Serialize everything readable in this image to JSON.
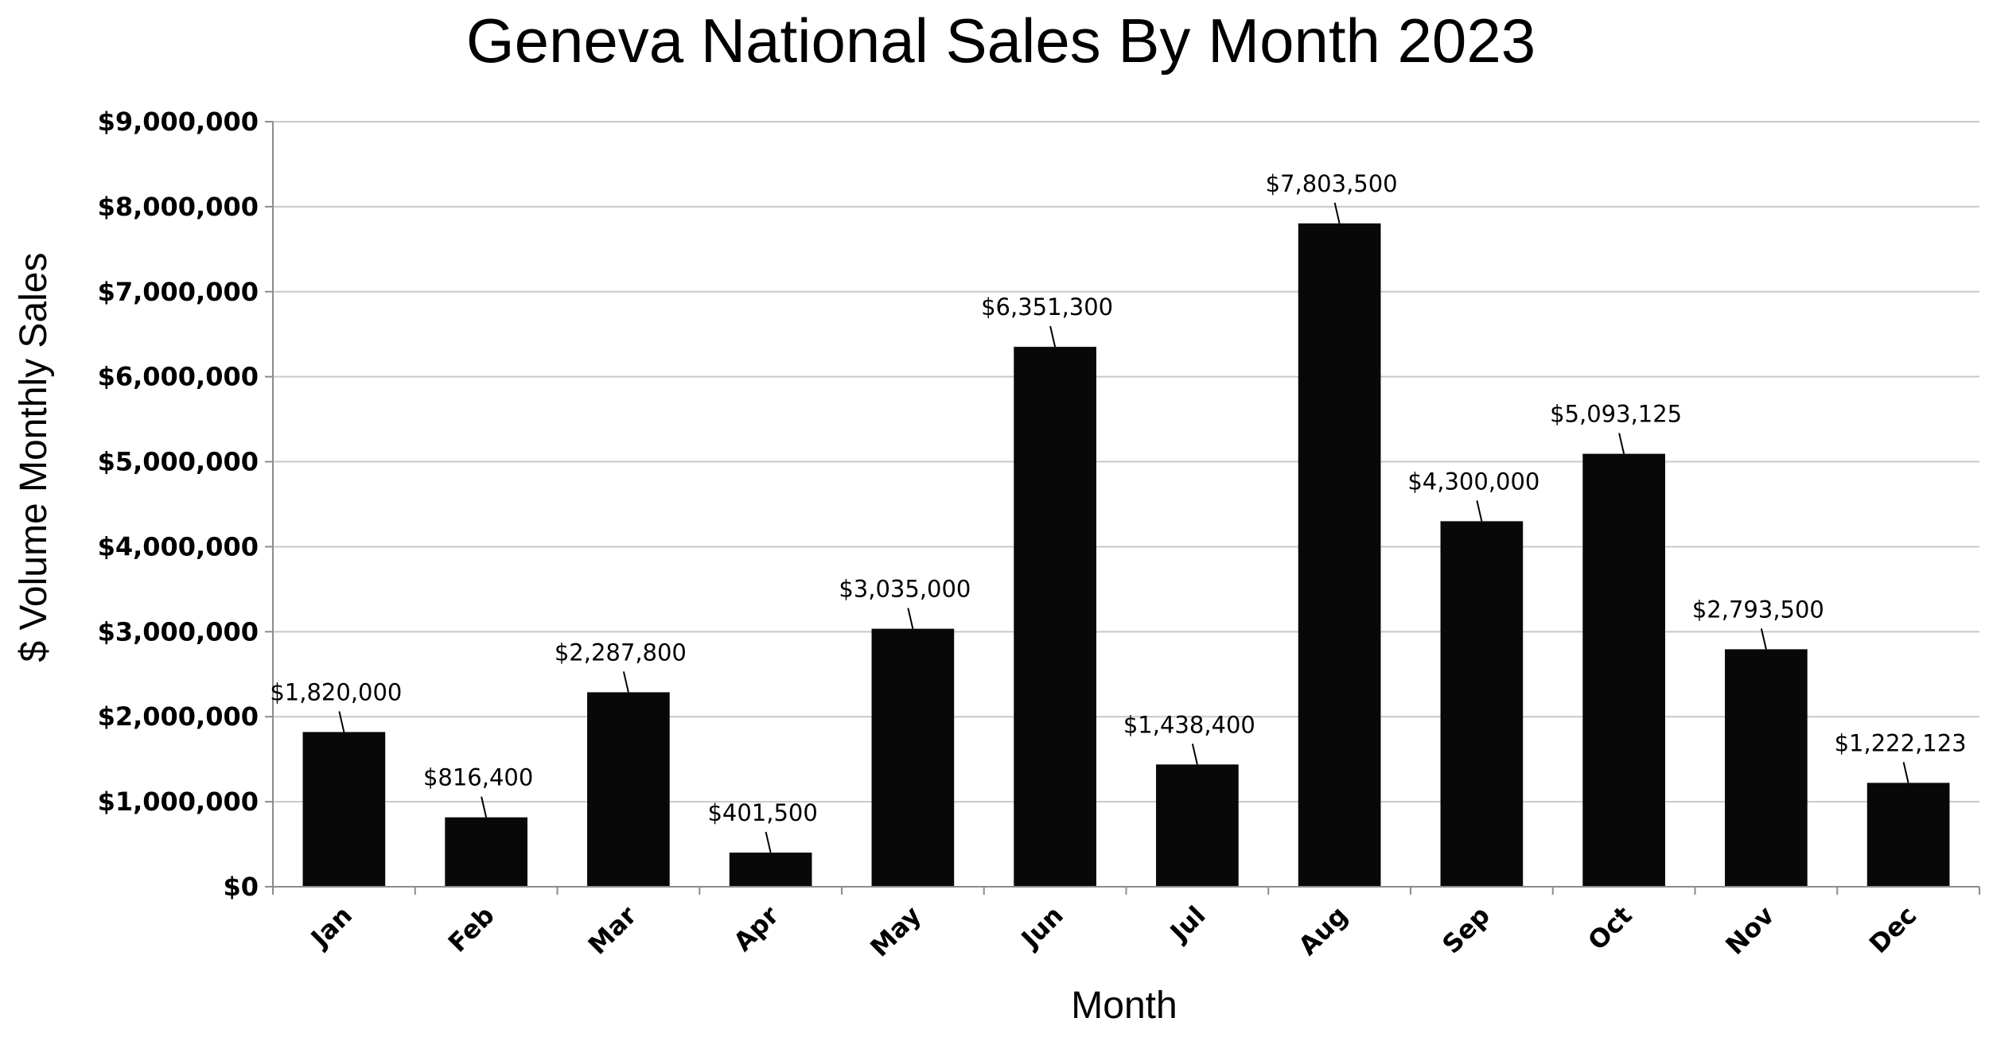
{
  "chart_data": {
    "type": "bar",
    "title": "Geneva National Sales By Month 2023",
    "xlabel": "Month",
    "ylabel": "$ Volume Monthly Sales",
    "categories": [
      "Jan",
      "Feb",
      "Mar",
      "Apr",
      "May",
      "Jun",
      "Jul",
      "Aug",
      "Sep",
      "Oct",
      "Nov",
      "Dec"
    ],
    "values": [
      1820000,
      816400,
      2287800,
      401500,
      3035000,
      6351300,
      1438400,
      7803500,
      4300000,
      5093125,
      2793500,
      1222123
    ],
    "data_labels": [
      "$1,820,000",
      "$816,400",
      "$2,287,800",
      "$401,500",
      "$3,035,000",
      "$6,351,300",
      "$1,438,400",
      "$7,803,500",
      "$4,300,000",
      "$5,093,125",
      "$2,793,500",
      "$1,222,123"
    ],
    "y_ticks": [
      0,
      1000000,
      2000000,
      3000000,
      4000000,
      5000000,
      6000000,
      7000000,
      8000000,
      9000000
    ],
    "y_tick_labels": [
      "$0",
      "$1,000,000",
      "$2,000,000",
      "$3,000,000",
      "$4,000,000",
      "$5,000,000",
      "$6,000,000",
      "$7,000,000",
      "$8,000,000",
      "$9,000,000"
    ],
    "ylim": [
      0,
      9000000
    ],
    "grid": true,
    "legend": "none",
    "bar_color": "#080808"
  }
}
